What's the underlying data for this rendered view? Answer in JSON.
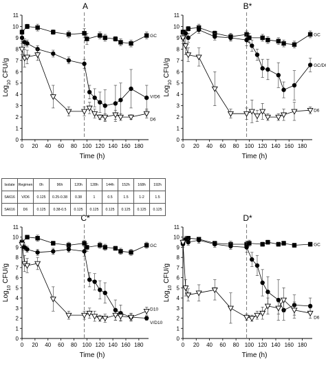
{
  "chart_data": [
    {
      "type": "line",
      "title": "A",
      "xlabel": "Time (h)",
      "ylabel": "Log10 CFU/g",
      "xlim": [
        0,
        195
      ],
      "ylim": [
        0,
        11
      ],
      "xticks": [
        0,
        20,
        40,
        60,
        80,
        100,
        120,
        140,
        160,
        180
      ],
      "yticks": [
        0,
        1,
        2,
        3,
        4,
        5,
        6,
        7,
        8,
        9,
        10,
        11
      ],
      "vline_x": 96,
      "series": [
        {
          "name": "GC",
          "marker": "square-filled",
          "x": [
            0,
            8,
            24,
            48,
            72,
            96,
            100,
            120,
            128,
            144,
            152,
            168,
            192
          ],
          "y": [
            9.5,
            10.0,
            9.9,
            9.5,
            9.3,
            9.4,
            8.9,
            9.2,
            9.0,
            8.9,
            8.6,
            8.5,
            9.2
          ],
          "err": [
            0.2,
            0.2,
            0.3,
            0.2,
            0.3,
            0.4,
            0.5,
            0.3,
            0.3,
            0.2,
            0.3,
            0.3,
            0.3
          ]
        },
        {
          "name": "V/D6",
          "marker": "circle-filled",
          "x": [
            0,
            4,
            8,
            24,
            48,
            72,
            96,
            104,
            112,
            120,
            128,
            144,
            152,
            168,
            192
          ],
          "y": [
            9.0,
            8.6,
            8.5,
            8.0,
            7.6,
            7.0,
            6.7,
            4.2,
            3.7,
            3.3,
            3.0,
            3.2,
            3.5,
            4.5,
            3.7
          ],
          "err": [
            0.3,
            0.3,
            0.3,
            0.3,
            0.3,
            0.3,
            0.4,
            0.6,
            0.8,
            0.9,
            1.4,
            1.6,
            1.5,
            1.7,
            1.1
          ]
        },
        {
          "name": "D6",
          "marker": "triangle-down-open",
          "x": [
            0,
            4,
            8,
            24,
            48,
            72,
            96,
            104,
            112,
            120,
            128,
            144,
            152,
            168,
            192
          ],
          "y": [
            8.0,
            7.2,
            7.3,
            7.5,
            3.8,
            2.5,
            2.5,
            2.8,
            2.3,
            2.0,
            2.0,
            2.2,
            2.0,
            2.0,
            2.3
          ],
          "err": [
            0.5,
            0.8,
            0.6,
            0.5,
            1.0,
            0.4,
            0.4,
            0.5,
            0.4,
            0.2,
            0.3,
            0.4,
            0.3,
            0.2,
            0.4
          ]
        }
      ]
    },
    {
      "type": "line",
      "title": "B*",
      "xlabel": "Time (h)",
      "ylabel": "Log10 CFU/g",
      "xlim": [
        0,
        195
      ],
      "ylim": [
        0,
        11
      ],
      "xticks": [
        0,
        20,
        40,
        60,
        80,
        100,
        120,
        140,
        160,
        180
      ],
      "yticks": [
        0,
        1,
        2,
        3,
        4,
        5,
        6,
        7,
        8,
        9,
        10,
        11
      ],
      "vline_x": 96,
      "series": [
        {
          "name": "GC",
          "marker": "square-filled",
          "x": [
            0,
            8,
            24,
            48,
            72,
            96,
            100,
            120,
            128,
            144,
            152,
            168,
            192
          ],
          "y": [
            9.5,
            9.8,
            9.9,
            9.4,
            9.1,
            9.3,
            9.0,
            9.0,
            8.8,
            8.7,
            8.5,
            8.4,
            9.3
          ],
          "err": [
            0.2,
            0.2,
            0.3,
            0.2,
            0.3,
            0.3,
            0.4,
            0.3,
            0.3,
            0.3,
            0.3,
            0.3,
            0.3
          ]
        },
        {
          "name": "GC/D6",
          "marker": "circle-filled",
          "x": [
            0,
            4,
            8,
            24,
            48,
            72,
            96,
            104,
            112,
            120,
            128,
            144,
            152,
            168,
            192
          ],
          "y": [
            9.0,
            9.4,
            9.0,
            9.7,
            9.1,
            9.0,
            8.8,
            8.3,
            7.5,
            6.3,
            6.2,
            5.7,
            4.4,
            4.8,
            6.6
          ],
          "err": [
            0.3,
            0.3,
            0.4,
            0.3,
            0.3,
            0.3,
            0.5,
            0.5,
            0.5,
            0.8,
            0.9,
            1.1,
            0.7,
            1.3,
            0.6
          ]
        },
        {
          "name": "D6",
          "marker": "triangle-down-open",
          "x": [
            0,
            4,
            8,
            24,
            48,
            72,
            96,
            104,
            112,
            120,
            128,
            144,
            152,
            168,
            192
          ],
          "y": [
            9.0,
            8.3,
            7.5,
            7.3,
            4.5,
            2.3,
            2.3,
            2.5,
            2.1,
            2.5,
            2.0,
            2.0,
            2.2,
            2.5,
            2.6
          ],
          "err": [
            0.5,
            0.8,
            0.6,
            0.8,
            1.5,
            0.4,
            0.5,
            1.0,
            0.5,
            0.7,
            0.3,
            0.3,
            0.5,
            0.8,
            0.3
          ]
        }
      ]
    },
    {
      "type": "line",
      "title": "C*",
      "xlabel": "Time (h)",
      "ylabel": "Log10 CFU/g",
      "xlim": [
        0,
        195
      ],
      "ylim": [
        0,
        11
      ],
      "xticks": [
        0,
        20,
        40,
        60,
        80,
        100,
        120,
        140,
        160,
        180
      ],
      "yticks": [
        0,
        1,
        2,
        3,
        4,
        5,
        6,
        7,
        8,
        9,
        10,
        11
      ],
      "vline_x": 96,
      "series": [
        {
          "name": "GC",
          "marker": "square-filled",
          "x": [
            0,
            8,
            24,
            48,
            72,
            96,
            100,
            120,
            128,
            144,
            152,
            168,
            192
          ],
          "y": [
            9.5,
            10.0,
            9.9,
            9.4,
            9.2,
            9.4,
            9.0,
            9.2,
            9.0,
            8.9,
            8.6,
            8.5,
            9.2
          ],
          "err": [
            0.2,
            0.2,
            0.3,
            0.2,
            0.3,
            0.3,
            0.4,
            0.3,
            0.3,
            0.2,
            0.3,
            0.3,
            0.3
          ]
        },
        {
          "name": "V/D10",
          "marker": "circle-filled",
          "x": [
            0,
            4,
            8,
            24,
            48,
            72,
            96,
            104,
            112,
            120,
            128,
            144,
            152,
            168,
            192
          ],
          "y": [
            9.5,
            9.0,
            8.8,
            8.5,
            8.6,
            8.8,
            8.6,
            5.8,
            5.6,
            4.8,
            4.5,
            2.8,
            2.5,
            2.1,
            2.0
          ],
          "err": [
            0.3,
            0.3,
            0.3,
            0.3,
            0.3,
            0.3,
            0.5,
            0.7,
            0.8,
            0.9,
            1.0,
            1.0,
            0.8,
            0.4,
            0.2
          ]
        },
        {
          "name": "D10",
          "marker": "triangle-down-open",
          "x": [
            0,
            4,
            8,
            24,
            48,
            72,
            96,
            104,
            112,
            120,
            128,
            144,
            152,
            168,
            192
          ],
          "y": [
            9.3,
            7.4,
            7.2,
            7.4,
            3.9,
            2.3,
            2.3,
            2.5,
            2.2,
            2.0,
            2.0,
            2.3,
            2.2,
            2.1,
            2.7
          ],
          "err": [
            0.4,
            0.8,
            0.7,
            0.6,
            1.2,
            0.4,
            0.4,
            0.5,
            0.5,
            0.3,
            0.4,
            0.5,
            0.4,
            0.3,
            0.4
          ]
        }
      ]
    },
    {
      "type": "line",
      "title": "D*",
      "xlabel": "Time (h)",
      "ylabel": "Log10 CFU/g",
      "xlim": [
        0,
        195
      ],
      "ylim": [
        0,
        11
      ],
      "xticks": [
        0,
        20,
        40,
        60,
        80,
        100,
        120,
        140,
        160,
        180
      ],
      "yticks": [
        0,
        1,
        2,
        3,
        4,
        5,
        6,
        7,
        8,
        9,
        10,
        11
      ],
      "vline_x": 96,
      "series": [
        {
          "name": "GC",
          "marker": "square-filled",
          "x": [
            0,
            8,
            24,
            48,
            72,
            96,
            100,
            120,
            128,
            144,
            152,
            168,
            192
          ],
          "y": [
            9.5,
            9.9,
            9.8,
            9.4,
            9.3,
            9.3,
            9.4,
            9.3,
            9.5,
            9.3,
            9.4,
            9.2,
            9.3
          ],
          "err": [
            0.2,
            0.2,
            0.2,
            0.2,
            0.3,
            0.3,
            0.3,
            0.2,
            0.2,
            0.2,
            0.2,
            0.2,
            0.2
          ]
        },
        {
          "name": "",
          "marker": "circle-filled",
          "x": [
            0,
            4,
            8,
            24,
            48,
            72,
            96,
            104,
            112,
            120,
            128,
            144,
            152,
            168,
            192
          ],
          "y": [
            9.3,
            9.8,
            9.5,
            9.7,
            9.3,
            9.1,
            9.0,
            7.8,
            7.2,
            5.5,
            4.6,
            3.8,
            2.8,
            3.3,
            3.2
          ],
          "err": [
            0.3,
            0.3,
            0.3,
            0.3,
            0.3,
            0.3,
            0.5,
            0.7,
            1.0,
            1.3,
            1.5,
            2.0,
            1.0,
            1.0,
            0.8
          ]
        },
        {
          "name": "D6",
          "marker": "triangle-down-open",
          "x": [
            0,
            4,
            8,
            24,
            48,
            72,
            96,
            104,
            112,
            120,
            128,
            144,
            152,
            168,
            192
          ],
          "y": [
            9.5,
            5.0,
            4.3,
            4.5,
            4.8,
            3.0,
            2.1,
            2.0,
            2.3,
            2.5,
            3.2,
            3.0,
            3.8,
            2.8,
            2.5
          ],
          "err": [
            0.3,
            0.8,
            0.6,
            0.8,
            1.0,
            1.5,
            0.3,
            0.3,
            0.4,
            0.6,
            0.8,
            0.6,
            1.2,
            0.8,
            0.5
          ]
        }
      ]
    }
  ],
  "mic_table": {
    "headers": [
      "Isolate",
      "Regimen",
      "0h",
      "96h",
      "120h",
      "128h",
      "144h",
      "152h",
      "168h",
      "192h"
    ],
    "rows": [
      [
        "SA616",
        "V/D6",
        "0.125",
        "0.25-0.38",
        "0.38",
        "1",
        "0.5",
        "1.5",
        "1-2",
        "1.5"
      ],
      [
        "SA616",
        "D6",
        "0.125",
        "0.38-0.5",
        "0.125",
        "0.125",
        "0.125",
        "0.125",
        "0.125",
        "0.125"
      ]
    ]
  }
}
